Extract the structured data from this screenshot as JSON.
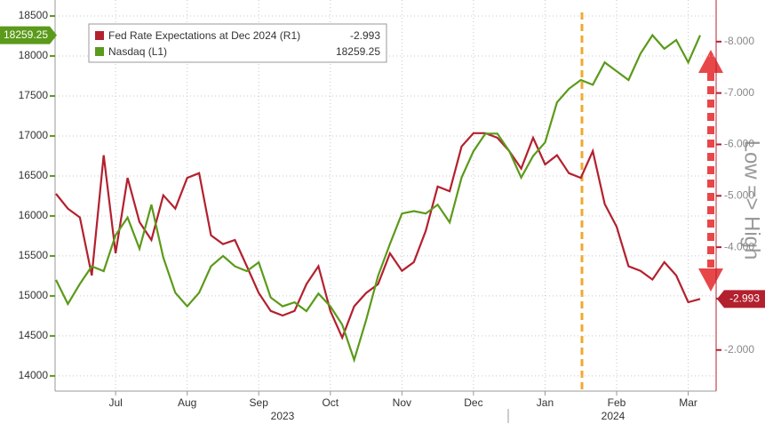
{
  "chart_data": {
    "type": "line",
    "categories": [
      null,
      null,
      null,
      null,
      null,
      "Jul",
      null,
      null,
      null,
      null,
      null,
      "Aug",
      null,
      null,
      null,
      null,
      null,
      "Sep",
      null,
      null,
      null,
      null,
      null,
      "Oct",
      null,
      null,
      null,
      null,
      null,
      "Nov",
      null,
      null,
      null,
      null,
      null,
      "Dec",
      null,
      null,
      null,
      null,
      null,
      "Jan",
      null,
      null,
      null,
      null,
      null,
      "Feb",
      null,
      null,
      null,
      null,
      null,
      "Mar",
      null
    ],
    "year_labels": [
      "2023",
      "2024"
    ],
    "series": [
      {
        "name": "Fed Rate Expectations at Dec 2024 (R1)",
        "color": "#b3202e",
        "axis": "y2",
        "values": [
          -5.04,
          -4.75,
          -4.58,
          -3.45,
          -5.79,
          -3.88,
          -5.35,
          -4.49,
          -4.14,
          -5.01,
          -4.75,
          -5.35,
          -5.44,
          -4.23,
          -4.06,
          -4.14,
          -3.63,
          -3.11,
          -2.76,
          -2.67,
          -2.76,
          -3.28,
          -3.63,
          -2.76,
          -2.24,
          -2.85,
          -3.11,
          -3.28,
          -3.88,
          -3.54,
          -3.71,
          -4.32,
          -5.18,
          -5.09,
          -5.96,
          -6.22,
          -6.22,
          -6.13,
          -5.87,
          -5.53,
          -6.13,
          -5.61,
          -5.79,
          -5.44,
          -5.35,
          -5.87,
          -4.84,
          -4.4,
          -3.63,
          -3.54,
          -3.37,
          -3.71,
          -3.45,
          -2.93,
          -2.993
        ]
      },
      {
        "name": "Nasdaq (L1)",
        "color": "#5b9a1a",
        "values": [
          15200,
          14900,
          15150,
          15370,
          15310,
          15760,
          15980,
          15590,
          16140,
          15480,
          15040,
          14870,
          15040,
          15370,
          15500,
          15370,
          15310,
          15420,
          14980,
          14870,
          14920,
          14810,
          15030,
          14870,
          14640,
          14200,
          14700,
          15250,
          15650,
          16030,
          16060,
          16030,
          16140,
          15920,
          16480,
          16810,
          17030,
          17030,
          16810,
          16480,
          16750,
          16920,
          17420,
          17590,
          17700,
          17640,
          17920,
          17810,
          17700,
          18030,
          18260,
          18090,
          18200,
          17920,
          18259.25
        ]
      }
    ],
    "ylim": [
      13810,
      18700
    ],
    "yticks": [
      14000,
      14500,
      15000,
      15500,
      16000,
      16500,
      17000,
      17500,
      18000,
      18500
    ],
    "y2lim": [
      -1.2,
      -8.81
    ],
    "y2ticks": [
      {
        "value": -2,
        "label": "-2.000"
      },
      {
        "value": -3,
        "label": "-3.000"
      },
      {
        "value": -4,
        "label": "-4.000"
      },
      {
        "value": -5,
        "label": "-5.000"
      },
      {
        "value": -6,
        "label": "-6.000"
      },
      {
        "value": -7,
        "label": "-7.000"
      },
      {
        "value": -8,
        "label": "-8.000"
      }
    ],
    "annotation": "Low => High",
    "grid": true
  }
}
